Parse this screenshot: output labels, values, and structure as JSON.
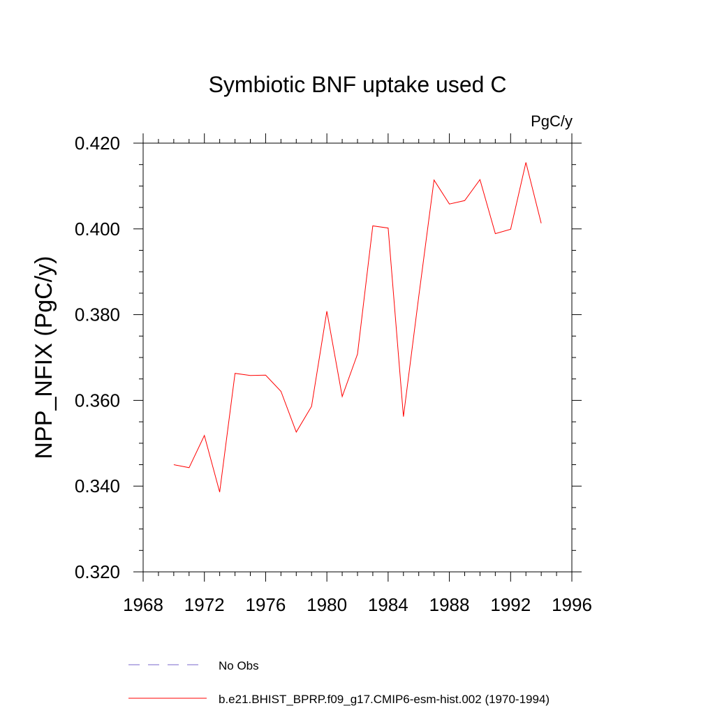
{
  "chart_data": {
    "type": "line",
    "title": "Symbiotic BNF uptake used C",
    "units_label": "PgC/y",
    "xlabel": "",
    "ylabel": "NPP_NFIX  (PgC/y)",
    "xlim": [
      1968,
      1996
    ],
    "ylim": [
      0.32,
      0.42
    ],
    "x_ticks": [
      1968,
      1972,
      1976,
      1980,
      1984,
      1988,
      1992,
      1996
    ],
    "x_tick_labels": [
      "1968",
      "1972",
      "1976",
      "1980",
      "1984",
      "1988",
      "1992",
      "1996"
    ],
    "y_ticks": [
      0.32,
      0.34,
      0.36,
      0.38,
      0.4,
      0.42
    ],
    "y_tick_labels": [
      "0.320",
      "0.340",
      "0.360",
      "0.380",
      "0.400",
      "0.420"
    ],
    "grid": false,
    "legend_position": "bottom",
    "series": [
      {
        "name": "b.e21.BHIST_BPRP.f09_g17.CMIP6-esm-hist.002 (1970-1994)",
        "color": "#ff0000",
        "style": "solid",
        "x": [
          1970,
          1971,
          1972,
          1973,
          1974,
          1975,
          1976,
          1977,
          1978,
          1979,
          1980,
          1981,
          1982,
          1983,
          1984,
          1985,
          1986,
          1987,
          1988,
          1989,
          1990,
          1991,
          1992,
          1993,
          1994
        ],
        "values": [
          0.345,
          0.3443,
          0.3518,
          0.3386,
          0.3663,
          0.3658,
          0.3659,
          0.3621,
          0.3526,
          0.3586,
          0.3808,
          0.3609,
          0.3708,
          0.4007,
          0.4002,
          0.3562,
          0.3842,
          0.4114,
          0.4058,
          0.4066,
          0.4115,
          0.3989,
          0.3999,
          0.4155,
          0.4013
        ]
      }
    ],
    "legend": [
      {
        "label": "No Obs",
        "color": "#7766cc",
        "style": "dashed"
      },
      {
        "label": "b.e21.BHIST_BPRP.f09_g17.CMIP6-esm-hist.002 (1970-1994)",
        "color": "#ff0000",
        "style": "solid"
      }
    ]
  }
}
